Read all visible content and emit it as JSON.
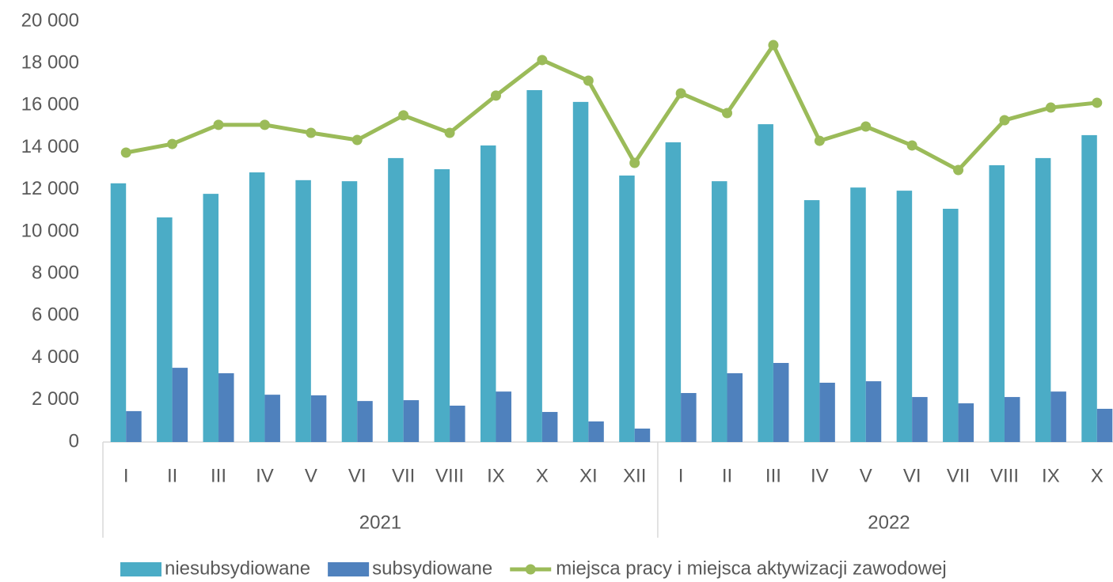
{
  "chart_data": {
    "type": "bar-line",
    "groups": [
      {
        "label": "2021",
        "categories": [
          "I",
          "II",
          "III",
          "IV",
          "V",
          "VI",
          "VII",
          "VIII",
          "IX",
          "X",
          "XI",
          "XII"
        ]
      },
      {
        "label": "2022",
        "categories": [
          "I",
          "II",
          "III",
          "IV",
          "V",
          "VI",
          "VII",
          "VIII",
          "IX",
          "X"
        ]
      }
    ],
    "series": [
      {
        "name": "niesubsydiowane",
        "type": "bar",
        "color": "#4bacc6",
        "values": [
          12300,
          10680,
          11800,
          12820,
          12450,
          12400,
          13500,
          12970,
          14100,
          16730,
          16170,
          12670,
          14250,
          12400,
          15110,
          11500,
          12100,
          11950,
          11090,
          13160,
          13500,
          14590
        ]
      },
      {
        "name": "subsydiowane",
        "type": "bar",
        "color": "#4f81bd",
        "values": [
          1470,
          3530,
          3270,
          2250,
          2220,
          1950,
          1990,
          1730,
          2400,
          1430,
          980,
          640,
          2330,
          3270,
          3760,
          2820,
          2890,
          2140,
          1840,
          2140,
          2400,
          1580
        ]
      },
      {
        "name": "miejsca pracy i miejsca aktywizacji zawodowej",
        "type": "line",
        "color": "#9bbb59",
        "values": [
          13760,
          14170,
          15080,
          15080,
          14700,
          14360,
          15530,
          14700,
          16470,
          18160,
          17180,
          13270,
          16580,
          15640,
          18870,
          14320,
          15000,
          14100,
          12930,
          15300,
          15900,
          16130
        ]
      }
    ],
    "ylim": [
      0,
      20000
    ],
    "yticks": [
      0,
      {
        "value": 2000,
        "label": "2 000"
      },
      {
        "value": 4000,
        "label": "4 000"
      },
      {
        "value": 6000,
        "label": "6 000"
      },
      {
        "value": 8000,
        "label": "8 000"
      },
      {
        "value": 10000,
        "label": "10 000"
      },
      {
        "value": 12000,
        "label": "12 000"
      },
      {
        "value": 14000,
        "label": "14 000"
      },
      {
        "value": 16000,
        "label": "16 000"
      },
      {
        "value": 18000,
        "label": "18 000"
      },
      {
        "value": 20000,
        "label": "20 000"
      }
    ],
    "grid": false,
    "legend": "bottom"
  }
}
